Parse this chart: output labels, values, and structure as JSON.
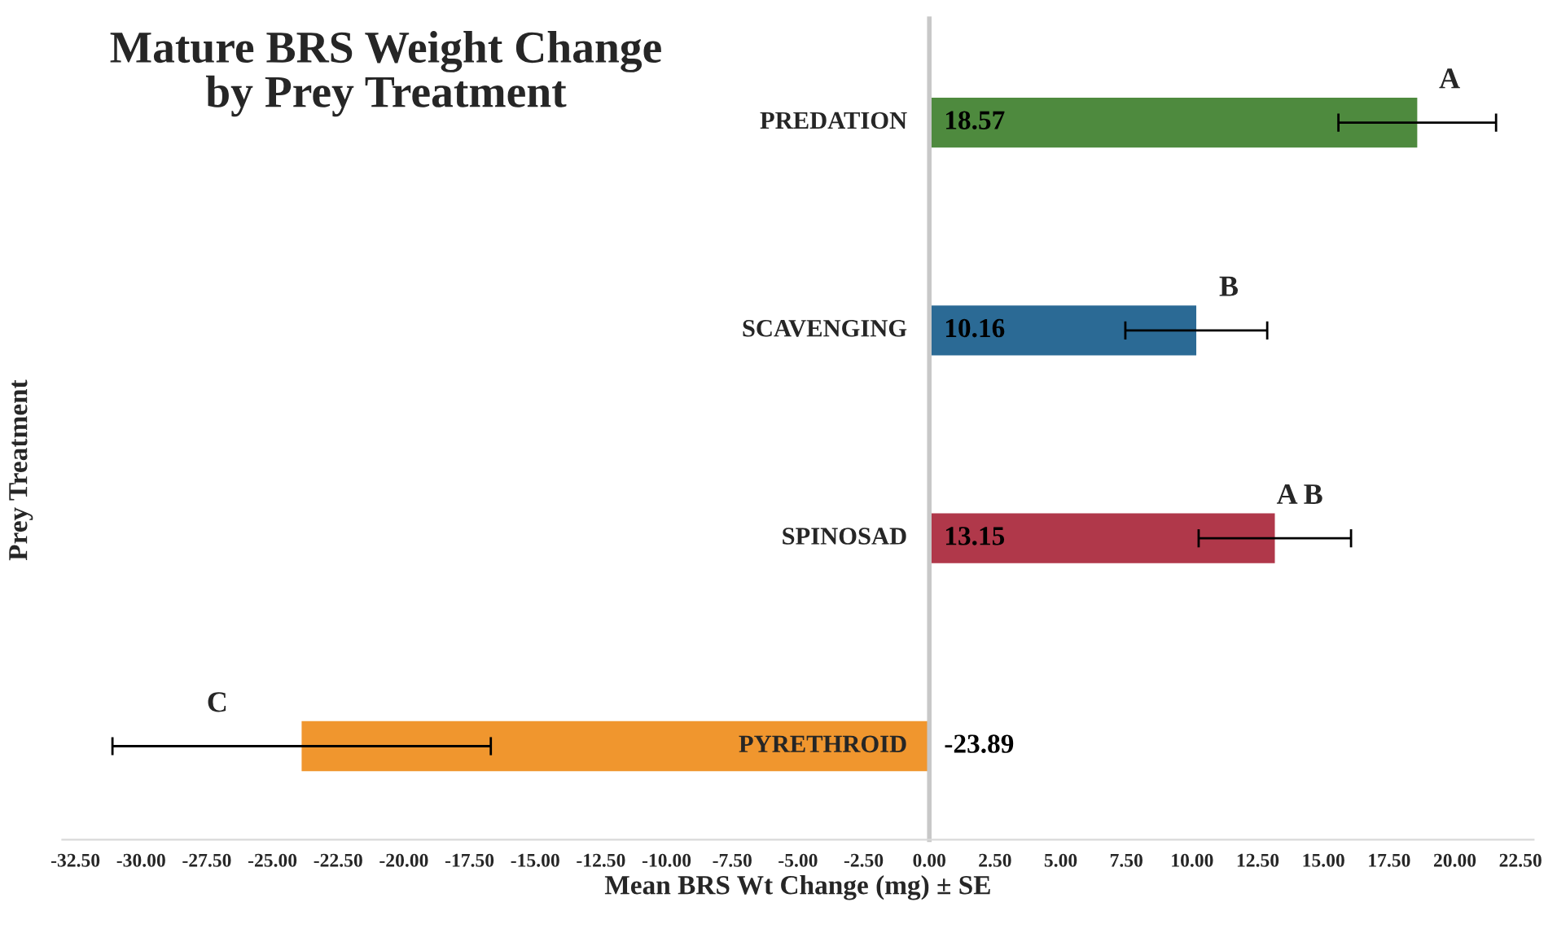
{
  "chart_data": {
    "type": "bar",
    "orientation": "horizontal",
    "title": "Mature BRS Weight Change\nby Prey Treatment",
    "xlabel": "Mean BRS Wt Change (mg) ± SE",
    "ylabel": "Prey Treatment",
    "categories": [
      "PREDATION",
      "SCAVENGING",
      "SPINOSAD",
      "PYRETHROID"
    ],
    "values": [
      18.57,
      10.16,
      13.15,
      -23.89
    ],
    "errors": [
      3.0,
      2.7,
      2.9,
      7.2
    ],
    "colors": [
      "#4e8a3e",
      "#2b6a95",
      "#b0384a",
      "#f0962e"
    ],
    "data_labels": true,
    "annotations": [
      {
        "text": "A",
        "x": 19.8,
        "y": "PREDATION"
      },
      {
        "text": "B",
        "x": 11.4,
        "y": "SCAVENGING"
      },
      {
        "text": "A B",
        "x": 14.1,
        "y": "SPINOSAD"
      },
      {
        "text": "C",
        "x": -27.1,
        "y": "PYRETHROID"
      }
    ],
    "xlim": [
      -33,
      23
    ],
    "xticks": [
      {
        "value": -32.5,
        "label": "-32.50"
      },
      {
        "value": -30,
        "label": "-30.00"
      },
      {
        "value": -27.5,
        "label": "-27.50"
      },
      {
        "value": -25,
        "label": "-25.00"
      },
      {
        "value": -22.5,
        "label": "-22.50"
      },
      {
        "value": -20,
        "label": "-20.00"
      },
      {
        "value": -17.5,
        "label": "-17.50"
      },
      {
        "value": -15,
        "label": "-15.00"
      },
      {
        "value": -12.5,
        "label": "-12.50"
      },
      {
        "value": -10,
        "label": "-10.00"
      },
      {
        "value": -7.5,
        "label": "-7.50"
      },
      {
        "value": -5,
        "label": "-5.00"
      },
      {
        "value": -2.5,
        "label": "-2.50"
      },
      {
        "value": 0,
        "label": "0.00"
      },
      {
        "value": 2.5,
        "label": "2.50"
      },
      {
        "value": 5,
        "label": "5.00"
      },
      {
        "value": 7.5,
        "label": "7.50"
      },
      {
        "value": 10,
        "label": "10.00"
      },
      {
        "value": 12.5,
        "label": "12.50"
      },
      {
        "value": 15,
        "label": "15.00"
      },
      {
        "value": 17.5,
        "label": "17.50"
      },
      {
        "value": 20,
        "label": "20.00"
      },
      {
        "value": 22.5,
        "label": "22.50"
      }
    ],
    "grid": false,
    "legend": false
  }
}
